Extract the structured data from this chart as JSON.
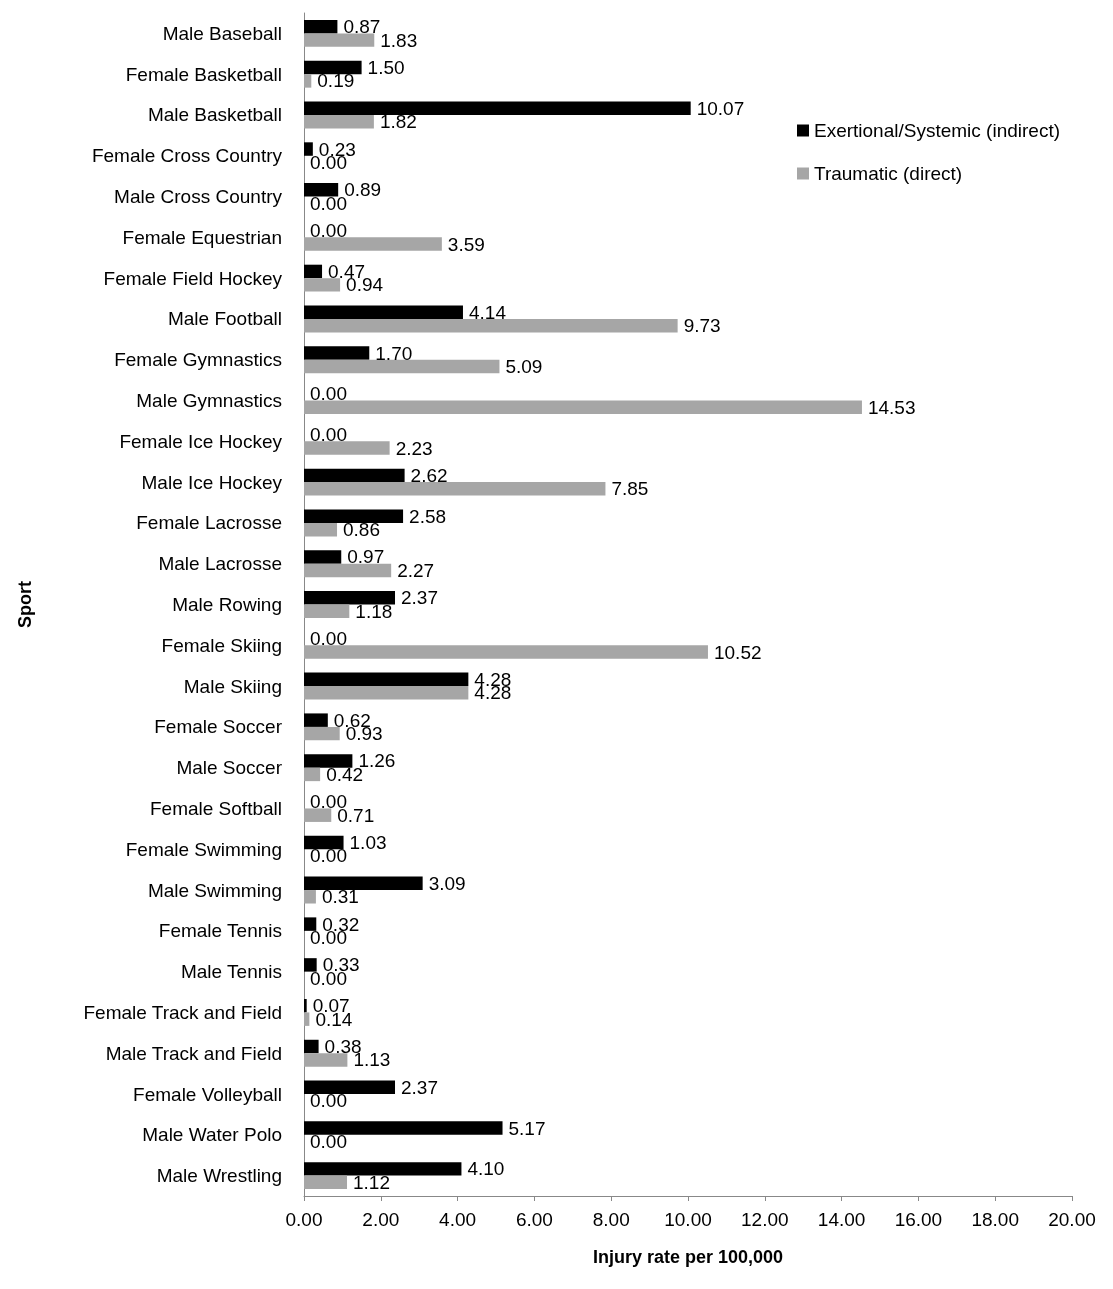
{
  "chart_data": {
    "type": "bar",
    "orientation": "horizontal",
    "xlabel": "Injury rate per 100,000",
    "ylabel": "Sport",
    "categories": [
      "Male Baseball",
      "Female Basketball",
      "Male Basketball",
      "Female Cross Country",
      "Male Cross Country",
      "Female Equestrian",
      "Female Field Hockey",
      "Male Football",
      "Female Gymnastics",
      "Male Gymnastics",
      "Female Ice Hockey",
      "Male Ice Hockey",
      "Female Lacrosse",
      "Male Lacrosse",
      "Male Rowing",
      "Female Skiing",
      "Male Skiing",
      "Female Soccer",
      "Male Soccer",
      "Female Softball",
      "Female Swimming",
      "Male Swimming",
      "Female Tennis",
      "Male Tennis",
      "Female Track and Field",
      "Male Track and Field",
      "Female Volleyball",
      "Male Water Polo",
      "Male Wrestling"
    ],
    "series": [
      {
        "name": "Exertional/Systemic (indirect)",
        "color": "#000000",
        "values": [
          0.87,
          1.5,
          10.07,
          0.23,
          0.89,
          0,
          0.47,
          4.14,
          1.7,
          0,
          0,
          2.62,
          2.58,
          0.97,
          2.37,
          0,
          4.28,
          0.62,
          1.26,
          0,
          1.03,
          3.09,
          0.32,
          0.33,
          0.07,
          0.38,
          2.37,
          5.17,
          4.1
        ],
        "value_labels": [
          "0.87",
          "1.50",
          "10.07",
          "0.23",
          "0.89",
          "0.00",
          "0.47",
          "4.14",
          "1.70",
          "0.00",
          "0.00",
          "2.62",
          "2.58",
          "0.97",
          "2.37",
          "0.00",
          "4.28",
          "0.62",
          "1.26",
          "0.00",
          "1.03",
          "3.09",
          "0.32",
          "0.33",
          "0.07",
          "0.38",
          "2.37",
          "5.17",
          "4.10"
        ]
      },
      {
        "name": "Traumatic (direct)",
        "color": "#a6a6a6",
        "values": [
          1.83,
          0.19,
          1.82,
          0,
          0,
          3.59,
          0.94,
          9.73,
          5.09,
          14.53,
          2.23,
          7.85,
          0.86,
          2.27,
          1.18,
          10.52,
          4.28,
          0.93,
          0.42,
          0.71,
          0,
          0.31,
          0,
          0,
          0.14,
          1.13,
          0,
          0,
          1.12
        ],
        "value_labels": [
          "1.83",
          "0.19",
          "1.82",
          "0.00",
          "0.00",
          "3.59",
          "0.94",
          "9.73",
          "5.09",
          "14.53",
          "2.23",
          "7.85",
          "0.86",
          "2.27",
          "1.18",
          "10.52",
          "4.28",
          "0.93",
          "0.42",
          "0.71",
          "0.00",
          "0.31",
          "0.00",
          "0.00",
          "0.14",
          "1.13",
          "0.00",
          "0.00",
          "1.12"
        ]
      }
    ],
    "xlim": [
      0,
      20
    ],
    "xticks": [
      {
        "value": 0,
        "label": "0.00"
      },
      {
        "value": 2,
        "label": "2.00"
      },
      {
        "value": 4,
        "label": "4.00"
      },
      {
        "value": 6,
        "label": "6.00"
      },
      {
        "value": 8,
        "label": "8.00"
      },
      {
        "value": 10,
        "label": "10.00"
      },
      {
        "value": 12,
        "label": "12.00"
      },
      {
        "value": 14,
        "label": "14.00"
      },
      {
        "value": 16,
        "label": "16.00"
      },
      {
        "value": 18,
        "label": "18.00"
      },
      {
        "value": 20,
        "label": "20.00"
      }
    ],
    "grid": false,
    "legend": "top right"
  }
}
